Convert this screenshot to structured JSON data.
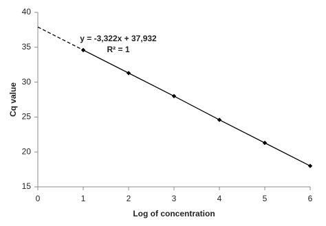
{
  "chart_data": {
    "type": "scatter",
    "x_label": "Log of concentration",
    "y_label": "Cq value",
    "annotations": [
      "y = -3,322x + 37,932",
      "R² = 1"
    ],
    "series": [
      {
        "name": "Cq",
        "color": "#000000",
        "x": [
          1,
          2,
          3,
          4,
          5,
          6
        ],
        "values": [
          34.6,
          31.3,
          28.0,
          24.6,
          21.3,
          18.0
        ]
      }
    ],
    "extrapolation": {
      "x": [
        0,
        1
      ],
      "values": [
        37.9,
        34.6
      ]
    },
    "xlim": [
      0,
      6
    ],
    "xticks": [
      0,
      1,
      2,
      3,
      4,
      5,
      6
    ],
    "ylim": [
      15,
      40
    ],
    "yticks": [
      15,
      20,
      25,
      30,
      35,
      40
    ],
    "grid": false
  }
}
